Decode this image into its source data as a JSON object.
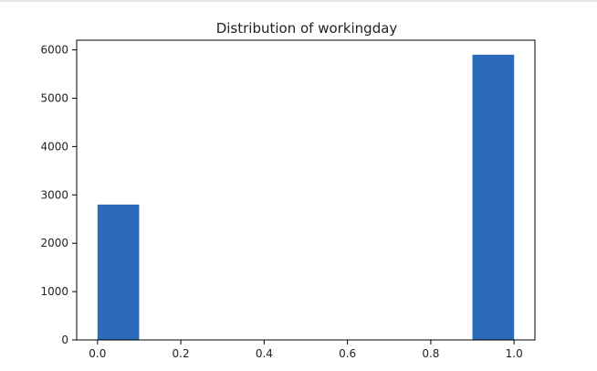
{
  "chart_data": {
    "type": "bar",
    "title": "Distribution of workingday",
    "xlabel": "",
    "ylabel": "",
    "bins": [
      {
        "x0": 0.0,
        "x1": 0.1,
        "count": 2800
      },
      {
        "x0": 0.9,
        "x1": 1.0,
        "count": 5900
      }
    ],
    "xlim": [
      -0.05,
      1.05
    ],
    "ylim": [
      0,
      6200
    ],
    "xticks": [
      "0.0",
      "0.2",
      "0.4",
      "0.6",
      "0.8",
      "1.0"
    ],
    "yticks": [
      "0",
      "1000",
      "2000",
      "3000",
      "4000",
      "5000",
      "6000"
    ],
    "bar_color": "#2a6ab8",
    "grid": false,
    "legend": "none"
  }
}
